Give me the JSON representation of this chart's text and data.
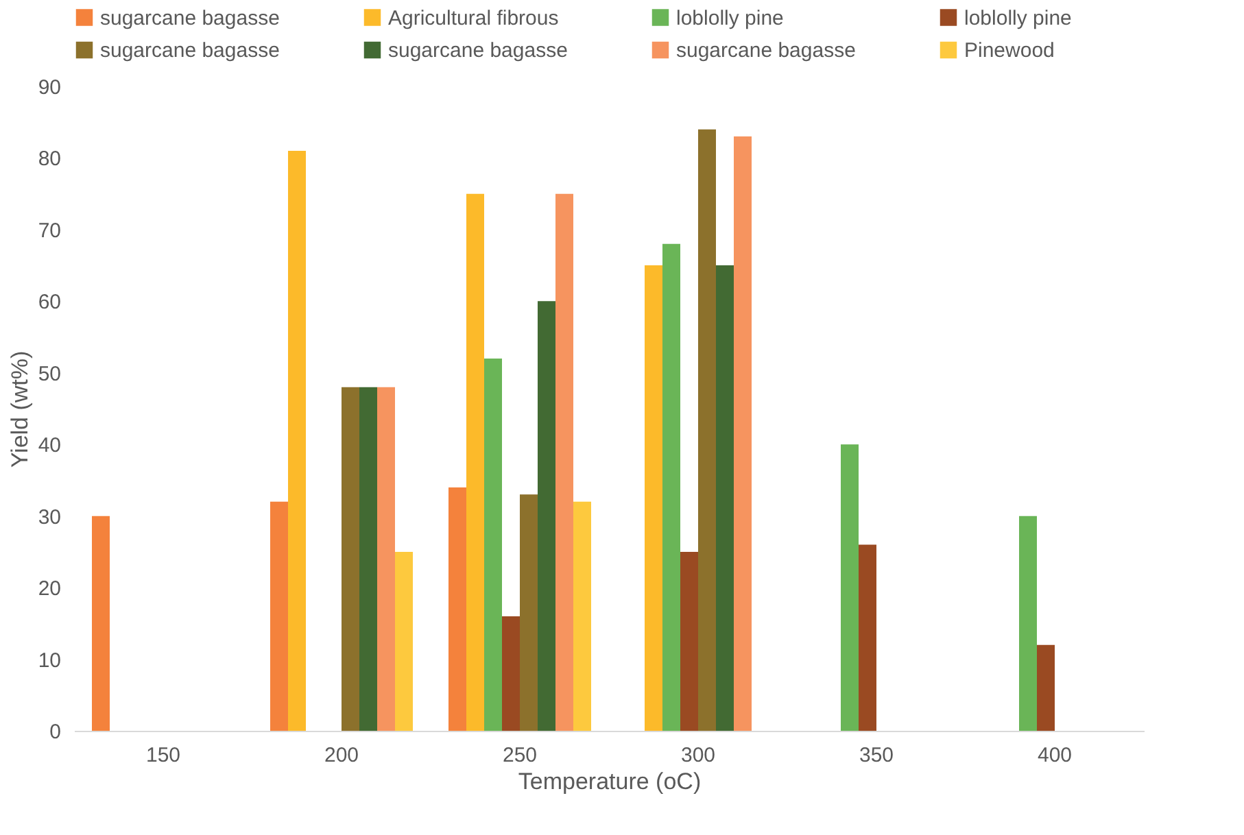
{
  "chart_data": {
    "type": "bar",
    "xlabel": "Temperature (oC)",
    "ylabel": "Yield (wt%)",
    "categories": [
      "150",
      "200",
      "250",
      "300",
      "350",
      "400"
    ],
    "series": [
      {
        "name": "sugarcane bagasse",
        "color": "#f4823c",
        "values": [
          30,
          32,
          34,
          null,
          null,
          null
        ]
      },
      {
        "name": "Agricultural fibrous",
        "color": "#fcba2a",
        "values": [
          null,
          81,
          75,
          65,
          null,
          null
        ]
      },
      {
        "name": "loblolly pine",
        "color": "#6ab557",
        "values": [
          null,
          null,
          52,
          68,
          40,
          30
        ]
      },
      {
        "name": "loblolly pine",
        "color": "#9a4a22",
        "values": [
          null,
          null,
          16,
          25,
          26,
          12
        ]
      },
      {
        "name": "sugarcane bagasse",
        "color": "#8c712c",
        "values": [
          null,
          48,
          33,
          84,
          null,
          null
        ]
      },
      {
        "name": "sugarcane bagasse",
        "color": "#426a33",
        "values": [
          null,
          48,
          60,
          65,
          null,
          null
        ]
      },
      {
        "name": "sugarcane bagasse",
        "color": "#f6945f",
        "values": [
          null,
          48,
          75,
          83,
          null,
          null
        ]
      },
      {
        "name": "Pinewood",
        "color": "#fdc93e",
        "values": [
          null,
          25,
          32,
          null,
          null,
          null
        ]
      }
    ],
    "ylim": [
      0,
      90
    ],
    "yticks": [
      0,
      10,
      20,
      30,
      40,
      50,
      60,
      70,
      80,
      90
    ],
    "grid": false,
    "legend": "top"
  }
}
